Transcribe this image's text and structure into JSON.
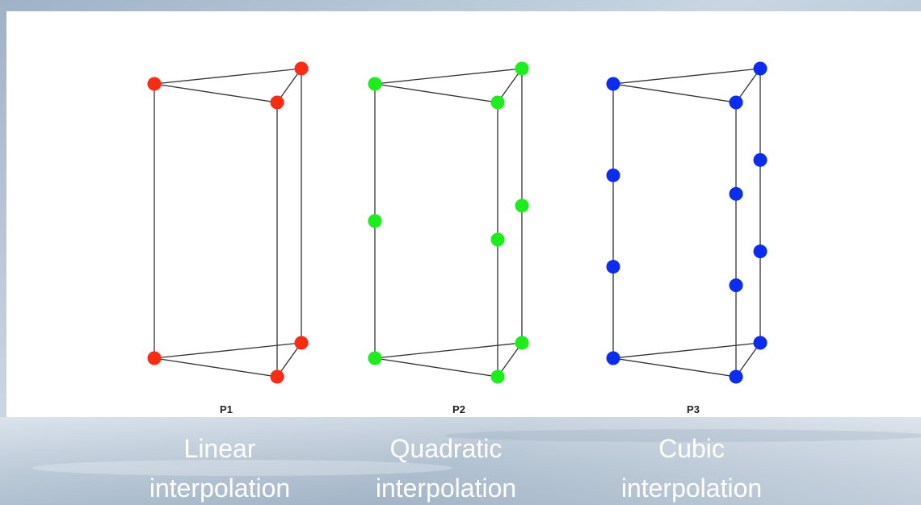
{
  "panels": [
    {
      "label": "P1",
      "caption": [
        "Linear",
        "interpolation"
      ]
    },
    {
      "label": "P2",
      "caption": [
        "Quadratic",
        "interpolation"
      ]
    },
    {
      "label": "P3",
      "caption": [
        "Cubic",
        "interpolation"
      ]
    }
  ]
}
